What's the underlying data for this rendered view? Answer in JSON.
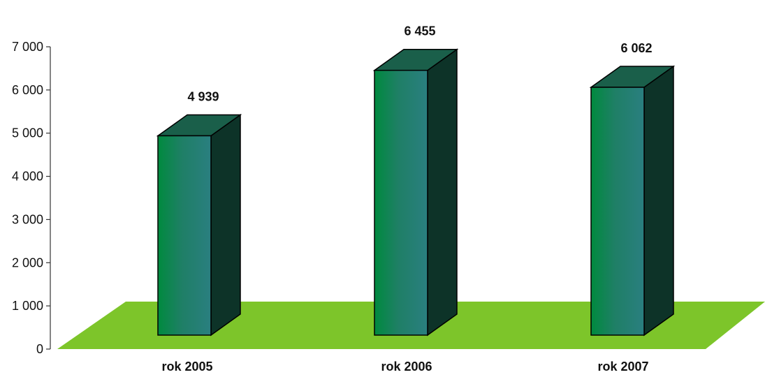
{
  "chart_data": {
    "type": "bar",
    "categories": [
      "rok 2005",
      "rok 2006",
      "rok 2007"
    ],
    "values": [
      4939,
      6455,
      6062
    ],
    "value_labels": [
      "4 939",
      "6 455",
      "6 062"
    ],
    "ylim": [
      0,
      7000
    ],
    "yticks": [
      0,
      1000,
      2000,
      3000,
      4000,
      5000,
      6000,
      7000
    ],
    "ytick_labels": [
      "0",
      "1 000",
      "2 000",
      "3 000",
      "4 000",
      "5 000",
      "6 000",
      "7 000"
    ],
    "grid": false,
    "three_d": true,
    "colors": {
      "floor": "#7dc52a",
      "bar_front_left": "#008a3e",
      "bar_front_right": "#2a7f80",
      "bar_top": "#1a5f4a",
      "bar_side": "#0d3328",
      "axis": "#333333"
    }
  }
}
